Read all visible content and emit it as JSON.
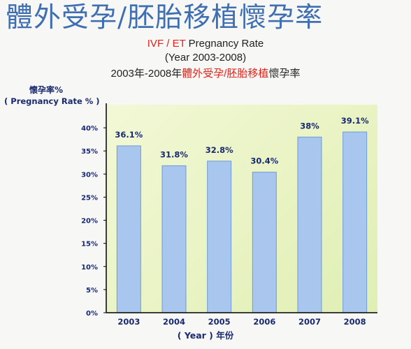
{
  "header": {
    "main_title": "體外受孕/胚胎移植懷孕率",
    "subtitle_red": "IVF / ET",
    "subtitle_rest": " Pregnancy Rate",
    "subtitle_years": "(Year 2003-2008)",
    "subtitle_zh_prefix": "2003年-2008年",
    "subtitle_zh_red": "體外受孕/胚胎移植",
    "subtitle_zh_suffix": "懷孕率"
  },
  "chart_data": {
    "type": "bar",
    "categories": [
      "2003",
      "2004",
      "2005",
      "2006",
      "2007",
      "2008"
    ],
    "values": [
      36.1,
      31.8,
      32.8,
      30.4,
      38,
      39.1
    ],
    "value_labels": [
      "36.1%",
      "31.8%",
      "32.8%",
      "30.4%",
      "38%",
      "39.1%"
    ],
    "ylabel_zh": "懷孕率%",
    "ylabel_en": "( Pregnancy Rate % )",
    "xlabel": "( Year )  年份",
    "ylim": [
      0,
      45
    ],
    "yticks": [
      0,
      5,
      10,
      15,
      20,
      25,
      30,
      35,
      40
    ],
    "ytick_labels": [
      "0%",
      "5%",
      "10%",
      "15%",
      "20%",
      "25%",
      "30%",
      "35%",
      "40%"
    ],
    "grid": false,
    "colors": {
      "bar": "#a9c6ee",
      "bar_edge": "#6f9bd6",
      "axis": "#000000",
      "label": "#1a2a70",
      "plot_bg": "#e9f3c3"
    }
  }
}
